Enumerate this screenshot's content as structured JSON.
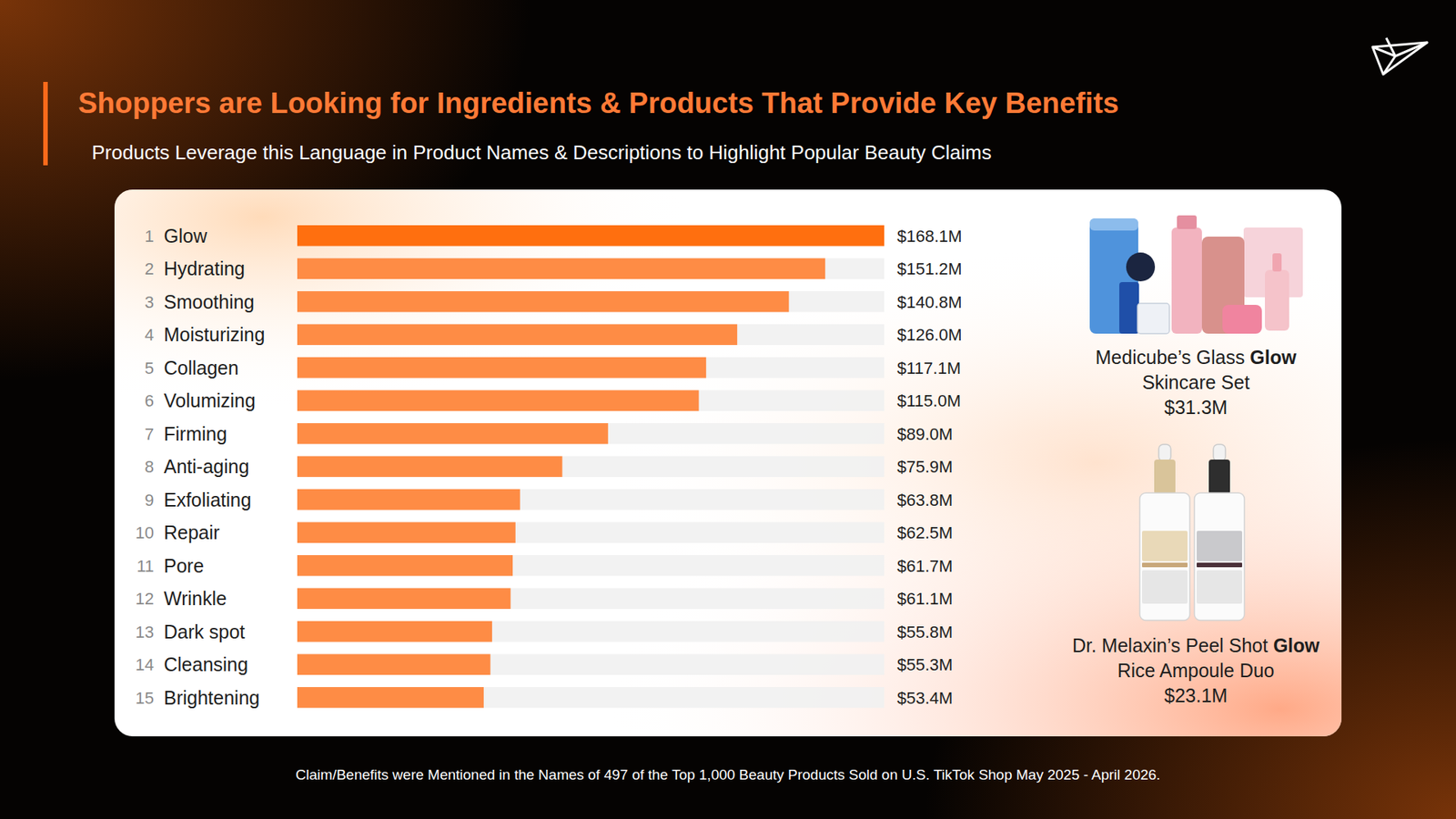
{
  "chart_data": {
    "type": "bar",
    "orientation": "horizontal",
    "title": "Shoppers are Looking for Ingredients & Products That Provide Key Benefits",
    "subtitle": "Products Leverage this Language in Product Names & Descriptions to Highlight Popular Beauty Claims",
    "footnote": "Claim/Benefits were Mentioned in the Names of 497 of the Top 1,000 Beauty Products Sold on U.S. TikTok Shop May 2025 - April 2026.",
    "rank_labels": [
      "1",
      "2",
      "3",
      "4",
      "5",
      "6",
      "7",
      "8",
      "9",
      "10",
      "11",
      "12",
      "13",
      "14",
      "15"
    ],
    "categories": [
      "Glow",
      "Hydrating",
      "Smoothing",
      "Moisturizing",
      "Collagen",
      "Volumizing",
      "Firming",
      "Anti-aging",
      "Exfoliating",
      "Repair",
      "Pore",
      "Wrinkle",
      "Dark spot",
      "Cleansing",
      "Brightening"
    ],
    "values": [
      168.1,
      151.2,
      140.8,
      126.0,
      117.1,
      115.0,
      89.0,
      75.9,
      63.8,
      62.5,
      61.7,
      61.1,
      55.8,
      55.3,
      53.4
    ],
    "value_labels": [
      "$168.1M",
      "$151.2M",
      "$140.8M",
      "$126.0M",
      "$117.1M",
      "$115.0M",
      "$89.0M",
      "$75.9M",
      "$63.8M",
      "$62.5M",
      "$61.7M",
      "$61.1M",
      "$55.8M",
      "$55.3M",
      "$53.4M"
    ],
    "colors": [
      "#ff6f0f",
      "#fe8c45",
      "#fe8c45",
      "#fe8c45",
      "#fe8c45",
      "#fe8c45",
      "#fe8c45",
      "#fe8c45",
      "#fe8c45",
      "#fe8c45",
      "#fe8c45",
      "#fe8c45",
      "#fe8c45",
      "#fe8c45",
      "#fe8c45"
    ],
    "xlim": [
      0,
      168.1
    ],
    "tick_labels": false,
    "grid": false,
    "data_labels": true,
    "annotations": [
      {
        "lines": [
          "Medicube’s Glass Glow",
          "Skincare Set",
          "$31.3M"
        ],
        "bold": "Glow"
      },
      {
        "lines": [
          "Dr. Melaxin’s Peel Shot Glow",
          "Rice Ampoule Duo",
          "$23.1M"
        ],
        "bold": "Glow"
      }
    ]
  }
}
